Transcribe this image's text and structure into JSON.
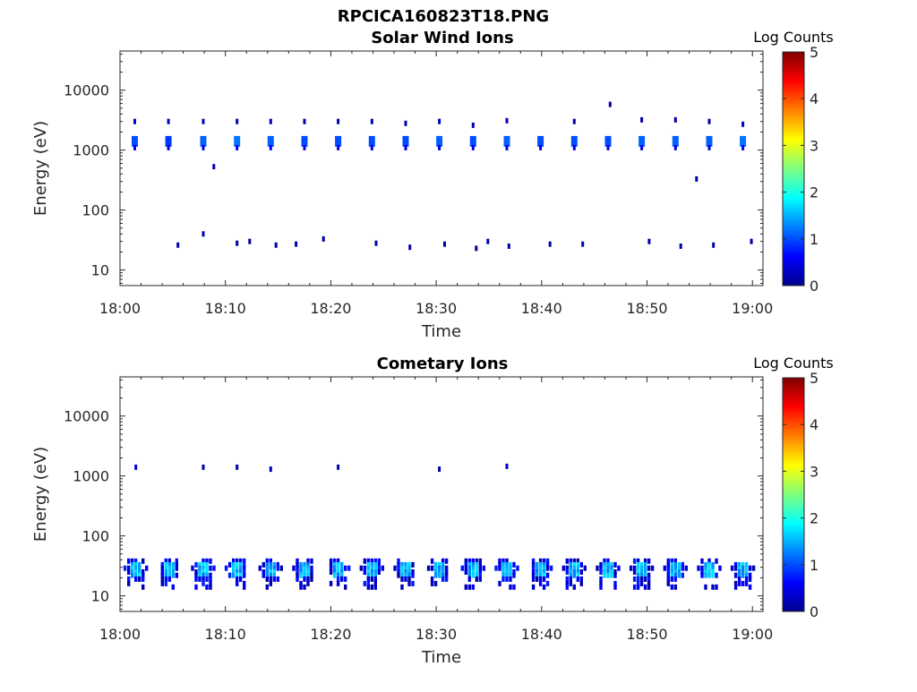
{
  "figure_title": "RPCICA160823T18.PNG",
  "chart_data": [
    {
      "type": "heatmap",
      "title": "Solar Wind Ions",
      "xlabel": "Time",
      "ylabel": "Energy (eV)",
      "x_ticks": [
        "18:00",
        "18:10",
        "18:20",
        "18:30",
        "18:40",
        "18:50",
        "19:00"
      ],
      "x_range_minutes": [
        0,
        61
      ],
      "y_scale": "log",
      "y_range": [
        5.5,
        45000
      ],
      "y_ticks": [
        10,
        100,
        1000,
        10000
      ],
      "y_tick_labels": [
        "10",
        "100",
        "1000",
        "10000"
      ],
      "colorbar": {
        "label": "Log Counts",
        "min": 0,
        "max": 5,
        "ticks": [
          "0",
          "1",
          "2",
          "3",
          "4",
          "5"
        ],
        "colormap": "jet"
      },
      "sweep_times_minutes": [
        1.5,
        4.7,
        7.9,
        11.1,
        14.3,
        17.5,
        20.7,
        23.9,
        27.1,
        30.3,
        33.5,
        36.7,
        39.9,
        43.1,
        46.3,
        49.5,
        52.7,
        55.9,
        59.1
      ],
      "pixels": [
        {
          "t": 1.4,
          "e": 1400,
          "v": 1.0
        },
        {
          "t": 1.4,
          "e": 1100,
          "v": 0.5
        },
        {
          "t": 1.4,
          "e": 3000,
          "v": 0.4
        },
        {
          "t": 4.6,
          "e": 1400,
          "v": 0.9
        },
        {
          "t": 4.6,
          "e": 1100,
          "v": 0.5
        },
        {
          "t": 4.6,
          "e": 3000,
          "v": 0.3
        },
        {
          "t": 7.9,
          "e": 1400,
          "v": 1.1
        },
        {
          "t": 7.9,
          "e": 1100,
          "v": 0.5
        },
        {
          "t": 7.9,
          "e": 3000,
          "v": 0.3
        },
        {
          "t": 11.1,
          "e": 1400,
          "v": 1.2
        },
        {
          "t": 11.1,
          "e": 1100,
          "v": 0.6
        },
        {
          "t": 11.1,
          "e": 3000,
          "v": 0.3
        },
        {
          "t": 14.3,
          "e": 1400,
          "v": 1.1
        },
        {
          "t": 14.3,
          "e": 1100,
          "v": 0.6
        },
        {
          "t": 14.3,
          "e": 3000,
          "v": 0.3
        },
        {
          "t": 17.5,
          "e": 1400,
          "v": 1.0
        },
        {
          "t": 17.5,
          "e": 1100,
          "v": 0.5
        },
        {
          "t": 17.5,
          "e": 3000,
          "v": 0.2
        },
        {
          "t": 20.7,
          "e": 1400,
          "v": 1.0
        },
        {
          "t": 20.7,
          "e": 1100,
          "v": 0.5
        },
        {
          "t": 20.7,
          "e": 3000,
          "v": 0.2
        },
        {
          "t": 23.9,
          "e": 1400,
          "v": 1.0
        },
        {
          "t": 23.9,
          "e": 1100,
          "v": 0.5
        },
        {
          "t": 23.9,
          "e": 3000,
          "v": 0.3
        },
        {
          "t": 27.1,
          "e": 1400,
          "v": 1.0
        },
        {
          "t": 27.1,
          "e": 1100,
          "v": 0.5
        },
        {
          "t": 27.1,
          "e": 2800,
          "v": 0.2
        },
        {
          "t": 30.3,
          "e": 1400,
          "v": 1.1
        },
        {
          "t": 30.3,
          "e": 1100,
          "v": 0.5
        },
        {
          "t": 30.3,
          "e": 3000,
          "v": 0.3
        },
        {
          "t": 33.5,
          "e": 1400,
          "v": 1.0
        },
        {
          "t": 33.5,
          "e": 1100,
          "v": 0.5
        },
        {
          "t": 33.5,
          "e": 2600,
          "v": 0.2
        },
        {
          "t": 36.7,
          "e": 1400,
          "v": 1.1
        },
        {
          "t": 36.7,
          "e": 1100,
          "v": 0.5
        },
        {
          "t": 36.7,
          "e": 3100,
          "v": 0.3
        },
        {
          "t": 39.9,
          "e": 1400,
          "v": 1.0
        },
        {
          "t": 39.9,
          "e": 1100,
          "v": 0.5
        },
        {
          "t": 43.1,
          "e": 1400,
          "v": 1.0
        },
        {
          "t": 43.1,
          "e": 1100,
          "v": 0.5
        },
        {
          "t": 43.1,
          "e": 3000,
          "v": 0.2
        },
        {
          "t": 46.3,
          "e": 1400,
          "v": 1.0
        },
        {
          "t": 46.3,
          "e": 1100,
          "v": 0.5
        },
        {
          "t": 46.5,
          "e": 5800,
          "v": 0.2
        },
        {
          "t": 49.5,
          "e": 1400,
          "v": 1.1
        },
        {
          "t": 49.5,
          "e": 1100,
          "v": 0.5
        },
        {
          "t": 49.5,
          "e": 3200,
          "v": 0.2
        },
        {
          "t": 52.7,
          "e": 1400,
          "v": 1.1
        },
        {
          "t": 52.7,
          "e": 1100,
          "v": 0.5
        },
        {
          "t": 52.7,
          "e": 3200,
          "v": 0.2
        },
        {
          "t": 55.9,
          "e": 1400,
          "v": 1.1
        },
        {
          "t": 55.9,
          "e": 1100,
          "v": 0.5
        },
        {
          "t": 55.9,
          "e": 3000,
          "v": 0.2
        },
        {
          "t": 59.1,
          "e": 1400,
          "v": 1.2
        },
        {
          "t": 59.1,
          "e": 1100,
          "v": 0.6
        },
        {
          "t": 59.1,
          "e": 2700,
          "v": 0.3
        },
        {
          "t": 8.9,
          "e": 530,
          "v": 0.2
        },
        {
          "t": 54.7,
          "e": 330,
          "v": 0.2
        },
        {
          "t": 5.5,
          "e": 26,
          "v": 0.2
        },
        {
          "t": 7.9,
          "e": 40,
          "v": 0.2
        },
        {
          "t": 11.1,
          "e": 28,
          "v": 0.2
        },
        {
          "t": 12.3,
          "e": 30,
          "v": 0.2
        },
        {
          "t": 14.8,
          "e": 26,
          "v": 0.2
        },
        {
          "t": 16.7,
          "e": 27,
          "v": 0.2
        },
        {
          "t": 19.3,
          "e": 33,
          "v": 0.2
        },
        {
          "t": 24.3,
          "e": 28,
          "v": 0.2
        },
        {
          "t": 27.5,
          "e": 24,
          "v": 0.2
        },
        {
          "t": 30.8,
          "e": 27,
          "v": 0.2
        },
        {
          "t": 33.8,
          "e": 23,
          "v": 0.2
        },
        {
          "t": 34.9,
          "e": 30,
          "v": 0.2
        },
        {
          "t": 36.9,
          "e": 25,
          "v": 0.2
        },
        {
          "t": 40.8,
          "e": 27,
          "v": 0.2
        },
        {
          "t": 43.9,
          "e": 27,
          "v": 0.2
        },
        {
          "t": 50.2,
          "e": 30,
          "v": 0.2
        },
        {
          "t": 53.2,
          "e": 25,
          "v": 0.2
        },
        {
          "t": 56.3,
          "e": 26,
          "v": 0.2
        },
        {
          "t": 59.9,
          "e": 30,
          "v": 0.2
        }
      ]
    },
    {
      "type": "heatmap",
      "title": "Cometary Ions",
      "xlabel": "Time",
      "ylabel": "Energy (eV)",
      "x_ticks": [
        "18:00",
        "18:10",
        "18:20",
        "18:30",
        "18:40",
        "18:50",
        "19:00"
      ],
      "x_range_minutes": [
        0,
        61
      ],
      "y_scale": "log",
      "y_range": [
        5.5,
        45000
      ],
      "y_ticks": [
        10,
        100,
        1000,
        10000
      ],
      "y_tick_labels": [
        "10",
        "100",
        "1000",
        "10000"
      ],
      "colorbar": {
        "label": "Log Counts",
        "min": 0,
        "max": 5,
        "ticks": [
          "0",
          "1",
          "2",
          "3",
          "4",
          "5"
        ],
        "colormap": "jet"
      },
      "sweep_times_minutes": [
        1.5,
        4.7,
        7.9,
        11.1,
        14.3,
        17.5,
        20.7,
        23.9,
        27.1,
        30.3,
        33.5,
        36.7,
        39.9,
        43.1,
        46.3,
        49.5,
        52.7,
        55.9,
        59.1
      ],
      "pixels": [
        {
          "t": 1.5,
          "e": 1400,
          "v": 0.4
        },
        {
          "t": 7.9,
          "e": 1400,
          "v": 0.2
        },
        {
          "t": 11.1,
          "e": 1400,
          "v": 0.2
        },
        {
          "t": 14.3,
          "e": 1300,
          "v": 0.3
        },
        {
          "t": 20.7,
          "e": 1400,
          "v": 0.2
        },
        {
          "t": 30.3,
          "e": 1300,
          "v": 0.2
        },
        {
          "t": 36.7,
          "e": 1450,
          "v": 0.3
        }
      ]
    }
  ]
}
